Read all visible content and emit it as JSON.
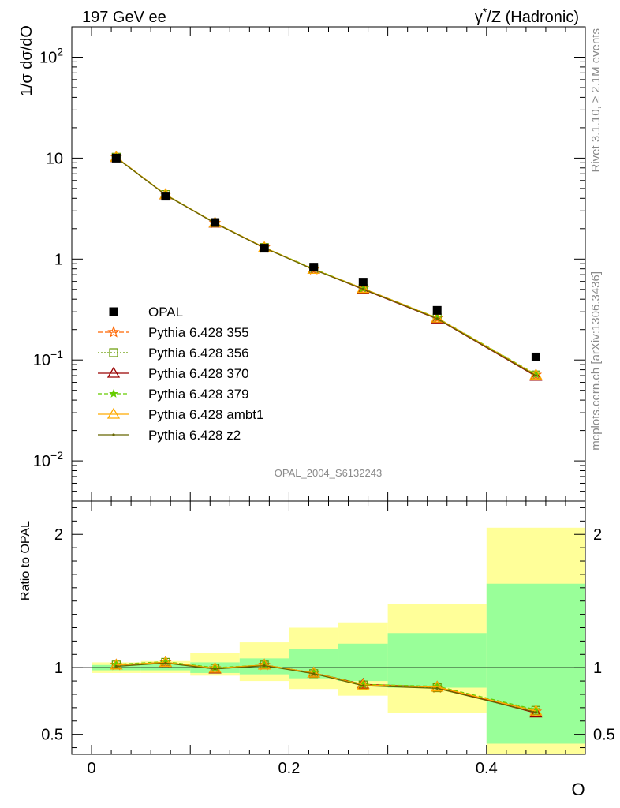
{
  "header": {
    "left": "197 GeV ee",
    "right_pre": "γ",
    "right_sup": "*",
    "right_post": "/Z (Hadronic)"
  },
  "side": {
    "rivet": "Rivet 3.1.10, ≥ 2.1M events",
    "mcplots": "mcplots.cern.ch [arXiv:1306.3436]"
  },
  "watermark": "OPAL_2004_S6132243",
  "colors": {
    "data": "#000000",
    "band_inner": "#99ff99",
    "band_outer": "#ffff99",
    "pythia_355": "#ff6600",
    "pythia_356": "#669900",
    "pythia_370": "#990000",
    "pythia_379": "#66cc00",
    "pythia_ambt1": "#ffaa00",
    "pythia_z2": "#666600"
  },
  "chart_data": [
    {
      "type": "line",
      "panel": "main",
      "ylabel": "1/σ dσ/dO",
      "yscale": "log",
      "xlim": [
        -0.02,
        0.5
      ],
      "ylim": [
        0.004,
        200
      ],
      "yticks": [
        {
          "value": 0.01,
          "base": "10",
          "exp": "−2"
        },
        {
          "value": 0.1,
          "base": "10",
          "exp": "−1"
        },
        {
          "value": 1,
          "base": "1",
          "exp": ""
        },
        {
          "value": 10,
          "base": "10",
          "exp": ""
        },
        {
          "value": 100,
          "base": "10",
          "exp": "2"
        }
      ],
      "x": [
        0.025,
        0.075,
        0.125,
        0.175,
        0.225,
        0.275,
        0.35,
        0.45
      ],
      "bin_edges": [
        0,
        0.05,
        0.1,
        0.15,
        0.2,
        0.25,
        0.3,
        0.4,
        0.5
      ],
      "data": {
        "name": "OPAL",
        "values": [
          10.0,
          4.2,
          2.3,
          1.28,
          0.83,
          0.59,
          0.31,
          0.107
        ]
      },
      "series": [
        {
          "name": "Pythia 6.428 355",
          "key": "pythia_355",
          "marker": "star-open",
          "dash": "6,3",
          "values": [
            10.2,
            4.35,
            2.28,
            1.3,
            0.79,
            0.51,
            0.26,
            0.071
          ]
        },
        {
          "name": "Pythia 6.428 356",
          "key": "pythia_356",
          "marker": "square-open",
          "dash": "2,2",
          "values": [
            10.2,
            4.35,
            2.28,
            1.3,
            0.79,
            0.51,
            0.26,
            0.071
          ]
        },
        {
          "name": "Pythia 6.428 370",
          "key": "pythia_370",
          "marker": "triangle-open",
          "dash": "",
          "values": [
            10.15,
            4.33,
            2.27,
            1.29,
            0.79,
            0.5,
            0.255,
            0.069
          ]
        },
        {
          "name": "Pythia 6.428 379",
          "key": "pythia_379",
          "marker": "star-filled",
          "dash": "5,3",
          "values": [
            10.2,
            4.36,
            2.29,
            1.3,
            0.8,
            0.51,
            0.262,
            0.072
          ]
        },
        {
          "name": "Pythia 6.428 ambt1",
          "key": "pythia_ambt1",
          "marker": "triangle-open",
          "dash": "",
          "values": [
            10.2,
            4.35,
            2.28,
            1.3,
            0.79,
            0.51,
            0.26,
            0.071
          ]
        },
        {
          "name": "Pythia 6.428 z2",
          "key": "pythia_z2",
          "marker": "dot",
          "dash": "",
          "values": [
            10.1,
            4.32,
            2.27,
            1.29,
            0.785,
            0.505,
            0.257,
            0.07
          ]
        }
      ]
    },
    {
      "type": "line",
      "panel": "ratio",
      "ylabel": "Ratio to OPAL",
      "xlabel": "O",
      "xlim": [
        -0.02,
        0.5
      ],
      "ylim": [
        0.35,
        2.25
      ],
      "yticks": [
        {
          "value": 0.5,
          "label": "0.5"
        },
        {
          "value": 1,
          "label": "1"
        },
        {
          "value": 2,
          "label": "2"
        }
      ],
      "xticks": [
        {
          "value": 0,
          "label": "0"
        },
        {
          "value": 0.2,
          "label": "0.2"
        },
        {
          "value": 0.4,
          "label": "0.4"
        }
      ],
      "reference_line": 1,
      "band_inner": [
        [
          0.98,
          1.02
        ],
        [
          0.98,
          1.03
        ],
        [
          0.96,
          1.04
        ],
        [
          0.95,
          1.07
        ],
        [
          0.92,
          1.14
        ],
        [
          0.9,
          1.18
        ],
        [
          0.85,
          1.26
        ],
        [
          0.43,
          1.63
        ]
      ],
      "band_outer": [
        [
          0.96,
          1.04
        ],
        [
          0.96,
          1.05
        ],
        [
          0.94,
          1.11
        ],
        [
          0.9,
          1.19
        ],
        [
          0.84,
          1.3
        ],
        [
          0.79,
          1.34
        ],
        [
          0.66,
          1.48
        ],
        [
          0.35,
          2.05
        ]
      ],
      "series": [
        {
          "key": "pythia_355",
          "marker": "star-open",
          "dash": "6,3",
          "values": [
            1.02,
            1.04,
            0.995,
            1.02,
            0.96,
            0.87,
            0.85,
            0.67
          ]
        },
        {
          "key": "pythia_356",
          "marker": "square-open",
          "dash": "2,2",
          "values": [
            1.02,
            1.04,
            0.995,
            1.02,
            0.955,
            0.87,
            0.85,
            0.68
          ]
        },
        {
          "key": "pythia_370",
          "marker": "triangle-open",
          "dash": "",
          "values": [
            1.02,
            1.04,
            0.99,
            1.02,
            0.96,
            0.875,
            0.855,
            0.66
          ]
        },
        {
          "key": "pythia_379",
          "marker": "star-filled",
          "dash": "5,3",
          "values": [
            1.025,
            1.045,
            1.0,
            1.02,
            0.96,
            0.875,
            0.86,
            0.685
          ]
        },
        {
          "key": "pythia_ambt1",
          "marker": "triangle-open",
          "dash": "",
          "values": [
            1.02,
            1.04,
            0.995,
            1.02,
            0.96,
            0.87,
            0.855,
            0.675
          ]
        },
        {
          "key": "pythia_z2",
          "marker": "dot",
          "dash": "",
          "values": [
            1.01,
            1.035,
            0.99,
            1.015,
            0.955,
            0.865,
            0.845,
            0.665
          ]
        }
      ]
    }
  ]
}
